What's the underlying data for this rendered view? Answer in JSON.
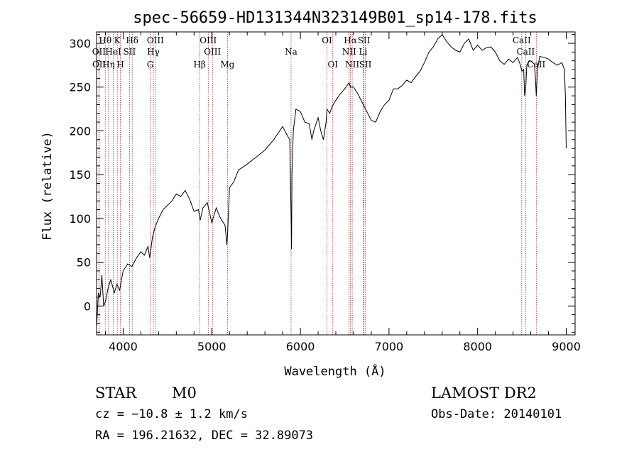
{
  "chart_data": {
    "type": "line",
    "title": "spec-56659-HD131344N323149B01_sp14-178.fits",
    "xlabel": "Wavelength (Å)",
    "ylabel": "Flux (relative)",
    "xlim": [
      3700,
      9100
    ],
    "ylim": [
      -33,
      313
    ],
    "xticks": [
      4000,
      5000,
      6000,
      7000,
      8000,
      9000
    ],
    "yticks": [
      0,
      50,
      100,
      150,
      200,
      250,
      300
    ],
    "grid": false,
    "series": [
      {
        "x": [
          3700,
          3720,
          3740,
          3760,
          3780,
          3800,
          3830,
          3860,
          3900,
          3930,
          3960,
          4000,
          4050,
          4100,
          4150,
          4200,
          4240,
          4280,
          4300,
          4330,
          4360,
          4400,
          4450,
          4500,
          4550,
          4600,
          4650,
          4700,
          4750,
          4800,
          4850,
          4870,
          4900,
          4950,
          5000,
          5050,
          5100,
          5150,
          5170,
          5180,
          5200,
          5250,
          5300,
          5400,
          5500,
          5600,
          5700,
          5800,
          5850,
          5880,
          5895,
          5900,
          5905,
          5920,
          5950,
          6000,
          6050,
          6100,
          6130,
          6150,
          6200,
          6230,
          6260,
          6290,
          6300,
          6330,
          6360,
          6400,
          6450,
          6500,
          6550,
          6565,
          6600,
          6650,
          6700,
          6750,
          6800,
          6850,
          6900,
          6950,
          7000,
          7050,
          7100,
          7150,
          7200,
          7250,
          7300,
          7350,
          7400,
          7450,
          7500,
          7550,
          7600,
          7650,
          7700,
          7750,
          7800,
          7850,
          7900,
          7950,
          8000,
          8050,
          8100,
          8150,
          8200,
          8250,
          8300,
          8350,
          8400,
          8450,
          8480,
          8500,
          8520,
          8530,
          8542,
          8555,
          8580,
          8600,
          8640,
          8650,
          8662,
          8675,
          8700,
          8750,
          8800,
          8850,
          8900,
          8950,
          8980,
          8990,
          9000
        ],
        "y": [
          -25,
          15,
          10,
          35,
          0,
          5,
          20,
          30,
          15,
          25,
          18,
          40,
          48,
          45,
          55,
          62,
          58,
          68,
          55,
          78,
          90,
          100,
          110,
          115,
          120,
          128,
          125,
          132,
          122,
          108,
          110,
          98,
          112,
          118,
          95,
          112,
          100,
          92,
          70,
          85,
          135,
          142,
          155,
          162,
          170,
          178,
          190,
          205,
          195,
          190,
          100,
          65,
          150,
          200,
          225,
          222,
          210,
          208,
          190,
          200,
          215,
          200,
          190,
          210,
          225,
          220,
          228,
          235,
          242,
          248,
          255,
          250,
          250,
          242,
          232,
          222,
          212,
          210,
          222,
          230,
          235,
          248,
          248,
          252,
          258,
          255,
          262,
          268,
          278,
          290,
          296,
          305,
          310,
          302,
          296,
          292,
          290,
          300,
          305,
          292,
          298,
          292,
          295,
          296,
          290,
          280,
          276,
          282,
          278,
          284,
          276,
          268,
          270,
          240,
          248,
          275,
          280,
          280,
          276,
          265,
          240,
          270,
          285,
          284,
          282,
          278,
          275,
          278,
          270,
          240,
          180
        ]
      }
    ],
    "line_markers": [
      {
        "label": "Hθ",
        "x": 3798,
        "row": 1
      },
      {
        "label": "K",
        "x": 3934,
        "row": 1
      },
      {
        "label": "Hδ",
        "x": 4102,
        "row": 1
      },
      {
        "label": "OIII",
        "x": 4364,
        "row": 1
      },
      {
        "label": "OIII",
        "x": 4960,
        "row": 1
      },
      {
        "label": "OI",
        "x": 6300,
        "row": 1
      },
      {
        "label": "Hα",
        "x": 6565,
        "row": 1
      },
      {
        "label": "SII",
        "x": 6718,
        "row": 1
      },
      {
        "label": "CaII",
        "x": 8498,
        "row": 1
      },
      {
        "label": "OII",
        "x": 3727,
        "row": 2
      },
      {
        "label": "HeI",
        "x": 3889,
        "row": 2
      },
      {
        "label": "SII",
        "x": 4072,
        "row": 2
      },
      {
        "label": "Hγ",
        "x": 4341,
        "row": 2
      },
      {
        "label": "OIII",
        "x": 5008,
        "row": 2
      },
      {
        "label": "Na",
        "x": 5895,
        "row": 2
      },
      {
        "label": "NII",
        "x": 6550,
        "row": 2
      },
      {
        "label": "Li",
        "x": 6708,
        "row": 2
      },
      {
        "label": "CaII",
        "x": 8542,
        "row": 2
      },
      {
        "label": "OII",
        "x": 3729,
        "row": 3
      },
      {
        "label": "Hη",
        "x": 3835,
        "row": 3
      },
      {
        "label": "H",
        "x": 3969,
        "row": 3
      },
      {
        "label": "G",
        "x": 4305,
        "row": 3
      },
      {
        "label": "Hβ",
        "x": 4863,
        "row": 3
      },
      {
        "label": "Mg",
        "x": 5177,
        "row": 3
      },
      {
        "label": "OI",
        "x": 6366,
        "row": 3
      },
      {
        "label": "NII",
        "x": 6585,
        "row": 3
      },
      {
        "label": "SII",
        "x": 6733,
        "row": 3
      },
      {
        "label": "CaII",
        "x": 8662,
        "row": 3
      }
    ]
  },
  "info": {
    "object_class": "STAR",
    "subclass": "M0",
    "cz": "cz = −10.8 ± 1.2 km/s",
    "coords": "RA = 196.21632, DEC =  32.89073",
    "survey": "LAMOST DR2",
    "obs_date": "Obs-Date: 20140101"
  },
  "colors": {
    "spectrum": "#000000",
    "marker_line": "#a0302a",
    "axes": "#000000",
    "background": "#ffffff"
  }
}
